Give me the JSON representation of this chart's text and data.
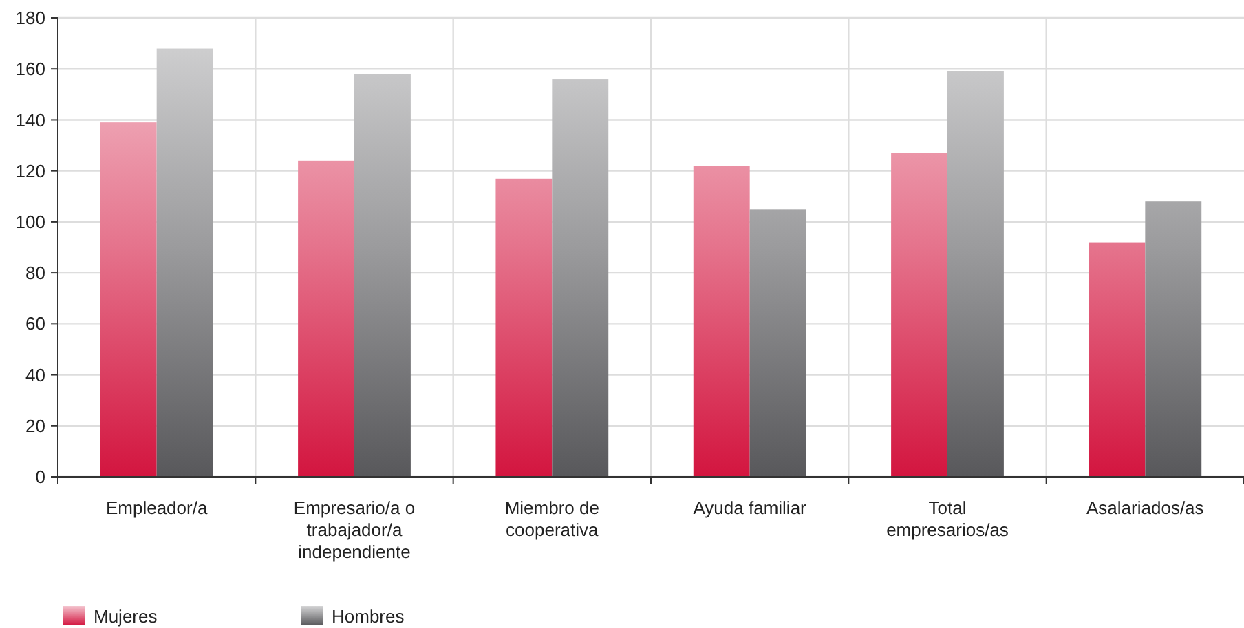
{
  "chart_data": {
    "type": "bar",
    "categories": [
      "Empleador/a",
      "Empresario/a o trabajador/a independiente",
      "Miembro de cooperativa",
      "Ayuda familiar",
      "Total empresarios/as",
      "Asalariados/as"
    ],
    "series": [
      {
        "name": "Mujeres",
        "color": "#d3153f",
        "values": [
          139,
          124,
          117,
          122,
          127,
          92
        ]
      },
      {
        "name": "Hombres",
        "color": "#58585b",
        "values": [
          168,
          158,
          156,
          105,
          159,
          108
        ]
      }
    ],
    "ylim": [
      0,
      180
    ],
    "yticks": [
      0,
      20,
      40,
      60,
      80,
      100,
      120,
      140,
      160,
      180
    ],
    "grid": true,
    "legend": "bottom left"
  }
}
